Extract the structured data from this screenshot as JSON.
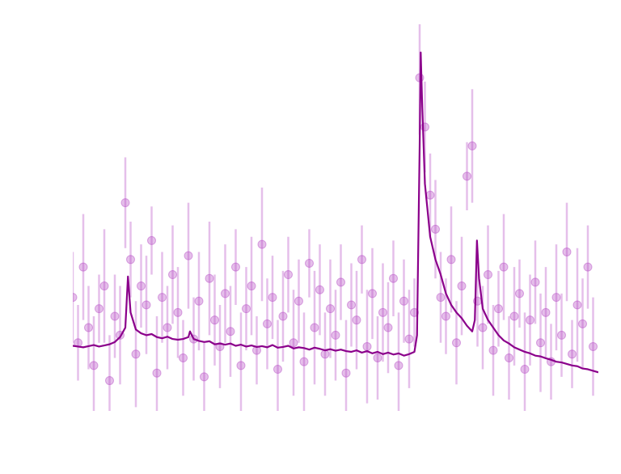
{
  "chart_data": {
    "type": "scatter",
    "xlim": [
      0,
      100
    ],
    "ylim": [
      0,
      100
    ],
    "series": [
      {
        "type": "errorbar",
        "color": "#b448c4",
        "x": [
          0,
          1,
          2,
          3,
          4,
          5,
          6,
          7,
          8,
          9,
          10,
          11,
          12,
          13,
          14,
          15,
          16,
          17,
          18,
          19,
          20,
          21,
          22,
          23,
          24,
          25,
          26,
          27,
          28,
          29,
          30,
          31,
          32,
          33,
          34,
          35,
          36,
          37,
          38,
          39,
          40,
          41,
          42,
          43,
          44,
          45,
          46,
          47,
          48,
          49,
          50,
          51,
          52,
          53,
          54,
          55,
          56,
          57,
          58,
          59,
          60,
          61,
          62,
          63,
          64,
          65,
          66,
          67,
          68,
          69,
          70,
          71,
          72,
          73,
          74,
          75,
          76,
          77,
          78,
          79,
          80,
          81,
          82,
          83,
          84,
          85,
          86,
          87,
          88,
          89,
          90,
          91,
          92,
          93,
          94,
          95,
          96,
          97,
          98,
          99
        ],
        "values": [
          30,
          18,
          38,
          22,
          12,
          27,
          33,
          8,
          25,
          20,
          55,
          40,
          15,
          33,
          28,
          45,
          10,
          30,
          22,
          36,
          26,
          14,
          41,
          19,
          29,
          9,
          35,
          24,
          17,
          31,
          21,
          38,
          12,
          27,
          33,
          16,
          44,
          23,
          30,
          11,
          25,
          36,
          18,
          29,
          13,
          39,
          22,
          32,
          15,
          27,
          20,
          34,
          10,
          28,
          24,
          40,
          17,
          31,
          14,
          26,
          22,
          35,
          12,
          29,
          19,
          26,
          88,
          75,
          57,
          48,
          30,
          25,
          40,
          18,
          33,
          62,
          70,
          29,
          22,
          36,
          16,
          27,
          38,
          14,
          25,
          31,
          11,
          24,
          34,
          18,
          26,
          13,
          30,
          20,
          42,
          15,
          28,
          23,
          38,
          17
        ],
        "errors": [
          12,
          10,
          14,
          11,
          13,
          9,
          15,
          12,
          11,
          13,
          12,
          10,
          14,
          11,
          13,
          9,
          15,
          12,
          11,
          13,
          12,
          10,
          14,
          11,
          13,
          9,
          15,
          12,
          11,
          13,
          12,
          10,
          14,
          11,
          13,
          9,
          15,
          12,
          11,
          13,
          12,
          10,
          14,
          11,
          13,
          9,
          15,
          12,
          11,
          13,
          12,
          10,
          14,
          11,
          13,
          9,
          15,
          12,
          11,
          13,
          12,
          10,
          14,
          11,
          13,
          9,
          15,
          12,
          11,
          13,
          12,
          10,
          14,
          11,
          13,
          9,
          15,
          12,
          11,
          13,
          12,
          10,
          14,
          11,
          13,
          9,
          15,
          12,
          11,
          13,
          12,
          10,
          14,
          11,
          13,
          9,
          15,
          12,
          11,
          13
        ]
      },
      {
        "type": "line",
        "color": "#8b008b",
        "x": [
          0,
          1,
          2,
          3,
          4,
          5,
          6,
          7,
          8,
          9,
          10,
          10.5,
          11,
          12,
          13,
          14,
          15,
          16,
          17,
          18,
          19,
          20,
          21,
          22,
          22.3,
          23,
          24,
          25,
          26,
          27,
          28,
          29,
          30,
          31,
          32,
          33,
          34,
          35,
          36,
          37,
          38,
          39,
          40,
          41,
          42,
          43,
          44,
          45,
          46,
          47,
          48,
          49,
          50,
          51,
          52,
          53,
          54,
          55,
          56,
          57,
          58,
          59,
          60,
          61,
          62,
          63,
          64,
          65,
          65.5,
          66,
          66.2,
          66.5,
          67,
          68,
          69,
          70,
          71,
          72,
          73,
          74,
          75,
          76,
          76.5,
          76.9,
          77.3,
          78,
          79,
          80,
          81,
          82,
          83,
          84,
          85,
          86,
          87,
          88,
          89,
          90,
          91,
          92,
          93,
          94,
          95,
          96,
          97,
          98,
          99,
          100
        ],
        "values": [
          17.2,
          17,
          16.8,
          17.1,
          17.4,
          17,
          17.3,
          17.6,
          18.2,
          19.5,
          22,
          35.5,
          26,
          21.5,
          20.5,
          20,
          20.3,
          19.5,
          19.2,
          19.6,
          19,
          18.8,
          19,
          19.5,
          21,
          19,
          18.5,
          18.2,
          18.4,
          17.6,
          17.8,
          17.5,
          17.8,
          17.2,
          17.5,
          17,
          17.3,
          16.9,
          17.1,
          16.8,
          17.4,
          16.7,
          16.9,
          17.2,
          16.5,
          16.8,
          16.6,
          16.2,
          16.7,
          16.4,
          16,
          16.3,
          15.9,
          16.2,
          15.8,
          15.6,
          16,
          15.4,
          15.8,
          15.2,
          15.6,
          15,
          15.4,
          14.9,
          15.2,
          14.6,
          15,
          15.6,
          20,
          70,
          94.7,
          80,
          60,
          46,
          40,
          36,
          31,
          28,
          26,
          24.5,
          22.5,
          21,
          24,
          45,
          35,
          27,
          24,
          22,
          20,
          18.6,
          17.8,
          16.8,
          16.2,
          15.6,
          15.2,
          14.6,
          14.4,
          13.9,
          13.5,
          13,
          12.8,
          12.4,
          12,
          11.8,
          11.2,
          11,
          10.6,
          10.2
        ]
      }
    ]
  }
}
